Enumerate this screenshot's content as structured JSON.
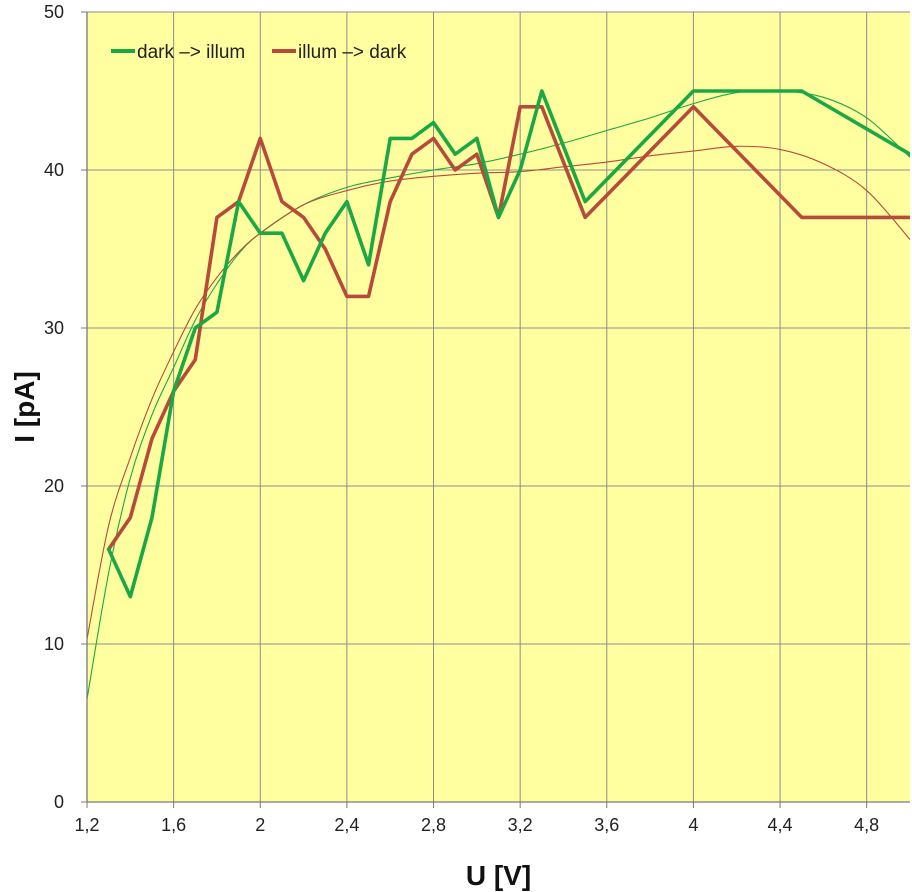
{
  "chart_data": {
    "type": "line",
    "xlabel": "U [V]",
    "ylabel": "I [pA]",
    "xlim": [
      1.2,
      5.0
    ],
    "ylim": [
      0,
      50
    ],
    "x_ticks": [
      1.2,
      1.6,
      2.0,
      2.4,
      2.8,
      3.2,
      3.6,
      4.0,
      4.4,
      4.8
    ],
    "x_tick_labels": [
      "1,2",
      "1,6",
      "2",
      "2,4",
      "2,8",
      "3,2",
      "3,6",
      "4",
      "4,4",
      "4,8"
    ],
    "y_ticks": [
      0,
      10,
      20,
      30,
      40,
      50
    ],
    "y_tick_labels": [
      "0",
      "10",
      "20",
      "30",
      "40",
      "50"
    ],
    "grid": true,
    "legend_position": "top-left",
    "plot_background": "#ffffa0",
    "series": [
      {
        "name": "dark –> illum",
        "color": "#1aa845",
        "x": [
          1.3,
          1.4,
          1.5,
          1.6,
          1.7,
          1.8,
          1.9,
          2.0,
          2.1,
          2.2,
          2.3,
          2.4,
          2.5,
          2.6,
          2.7,
          2.8,
          2.9,
          3.0,
          3.1,
          3.2,
          3.3,
          3.5,
          4.0,
          4.5,
          5.0
        ],
        "y": [
          16,
          13,
          18,
          26,
          30,
          31,
          38,
          36,
          36,
          33,
          36,
          38,
          34,
          42,
          42,
          43,
          41,
          42,
          37,
          40,
          45,
          38,
          45,
          45,
          41
        ]
      },
      {
        "name": "illum –> dark",
        "color": "#b84a3c",
        "x": [
          1.3,
          1.4,
          1.5,
          1.6,
          1.7,
          1.8,
          1.9,
          2.0,
          2.1,
          2.2,
          2.3,
          2.4,
          2.5,
          2.6,
          2.7,
          2.8,
          2.9,
          3.0,
          3.1,
          3.2,
          3.3,
          3.5,
          4.0,
          4.5,
          5.0
        ],
        "y": [
          16,
          18,
          23,
          26,
          28,
          37,
          38,
          42,
          38,
          37,
          35,
          32,
          32,
          38,
          41,
          42,
          40,
          41,
          37,
          44,
          44,
          37,
          44,
          37,
          37
        ]
      }
    ],
    "trendlines": [
      {
        "series": "dark –> illum",
        "color": "#1aa845",
        "x": [
          1.2,
          1.3,
          1.4,
          1.5,
          1.6,
          1.7,
          1.8,
          1.9,
          2.0,
          2.2,
          2.4,
          2.6,
          2.8,
          3.0,
          3.2,
          3.4,
          3.6,
          3.8,
          4.0,
          4.2,
          4.4,
          4.6,
          4.8,
          5.0
        ],
        "y": [
          6.5,
          14.5,
          20.5,
          24.5,
          27.5,
          30.5,
          32.8,
          34.7,
          36,
          37.8,
          38.9,
          39.5,
          40,
          40.4,
          41,
          41.7,
          42.5,
          43.3,
          44.2,
          44.9,
          45,
          44.6,
          43.3,
          40.8
        ]
      },
      {
        "series": "illum –> dark",
        "color": "#b84a3c",
        "x": [
          1.2,
          1.3,
          1.4,
          1.5,
          1.6,
          1.7,
          1.8,
          1.9,
          2.0,
          2.2,
          2.4,
          2.6,
          2.8,
          3.0,
          3.2,
          3.4,
          3.6,
          3.8,
          4.0,
          4.2,
          4.4,
          4.6,
          4.8,
          5.0
        ],
        "y": [
          10.3,
          17.5,
          21.8,
          25.5,
          28.5,
          31.2,
          33.2,
          34.8,
          36,
          37.8,
          38.7,
          39.3,
          39.6,
          39.8,
          39.9,
          40.2,
          40.5,
          40.9,
          41.2,
          41.5,
          41.3,
          40.4,
          38.7,
          35.6
        ]
      }
    ]
  }
}
